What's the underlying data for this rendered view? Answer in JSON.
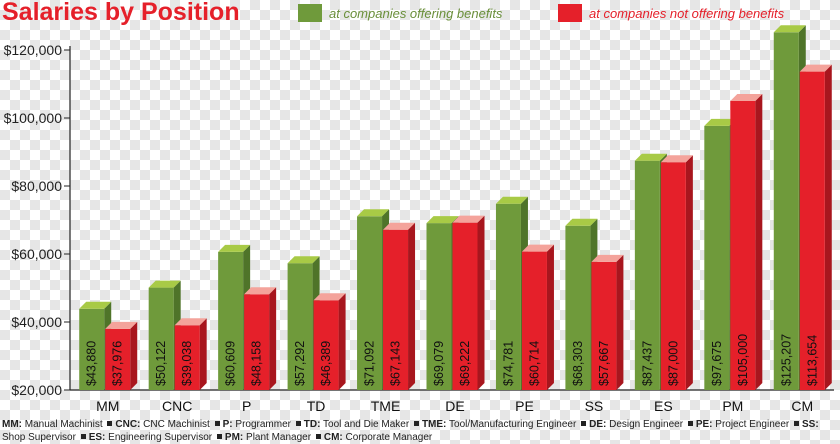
{
  "colors": {
    "benefits": "#6f9a3b",
    "benefits_top": "#a8ca46",
    "benefits_side": "#4f7429",
    "no_benefits": "#e5202a",
    "no_benefits_top": "#f4a39b",
    "no_benefits_side": "#a8161e",
    "title": "#e5202a"
  },
  "chart_data": {
    "type": "bar",
    "title": "Salaries by Position",
    "xlabel": "",
    "ylabel": "",
    "ylim": [
      20000,
      120000
    ],
    "yticks": [
      20000,
      40000,
      60000,
      80000,
      100000,
      120000
    ],
    "ytick_labels": [
      "$20,000",
      "$40,000",
      "$60,000",
      "$80,000",
      "$100,000",
      "$120,000"
    ],
    "grid": false,
    "legend_position": "top",
    "categories": [
      "MM",
      "CNC",
      "P",
      "TD",
      "TME",
      "DE",
      "PE",
      "SS",
      "ES",
      "PM",
      "CM"
    ],
    "series": [
      {
        "name": "at companies offering benefits",
        "values": [
          43880,
          50122,
          60609,
          57292,
          71092,
          69079,
          74781,
          68303,
          87437,
          97675,
          125207
        ],
        "labels": [
          "$43,880",
          "$50,122",
          "$60,609",
          "$57,292",
          "$71,092",
          "$69,079",
          "$74,781",
          "$68,303",
          "$87,437",
          "$97,675",
          "$125,207"
        ]
      },
      {
        "name": "at companies not offering benefits",
        "values": [
          37976,
          39038,
          48158,
          46389,
          67143,
          69222,
          60714,
          57667,
          87000,
          105000,
          113654
        ],
        "labels": [
          "$37,976",
          "$39,038",
          "$48,158",
          "$46,389",
          "$67,143",
          "$69,222",
          "$60,714",
          "$57,667",
          "$87,000",
          "$105,000",
          "$113,654"
        ]
      }
    ]
  },
  "footnote": [
    {
      "abbr": "MM:",
      "text": "Manual Machinist"
    },
    {
      "abbr": "CNC:",
      "text": "CNC Machinist"
    },
    {
      "abbr": "P:",
      "text": "Programmer"
    },
    {
      "abbr": "TD:",
      "text": "Tool and Die Maker"
    },
    {
      "abbr": "TME:",
      "text": "Tool/Manufacturing Engineer"
    },
    {
      "abbr": "DE:",
      "text": "Design Engineer"
    },
    {
      "abbr": "PE:",
      "text": "Project Engineer"
    },
    {
      "abbr": "SS:",
      "text": "Shop Supervisor"
    },
    {
      "abbr": "ES:",
      "text": "Engineering Supervisor"
    },
    {
      "abbr": "PM:",
      "text": "Plant Manager"
    },
    {
      "abbr": "CM:",
      "text": "Corporate Manager"
    }
  ]
}
